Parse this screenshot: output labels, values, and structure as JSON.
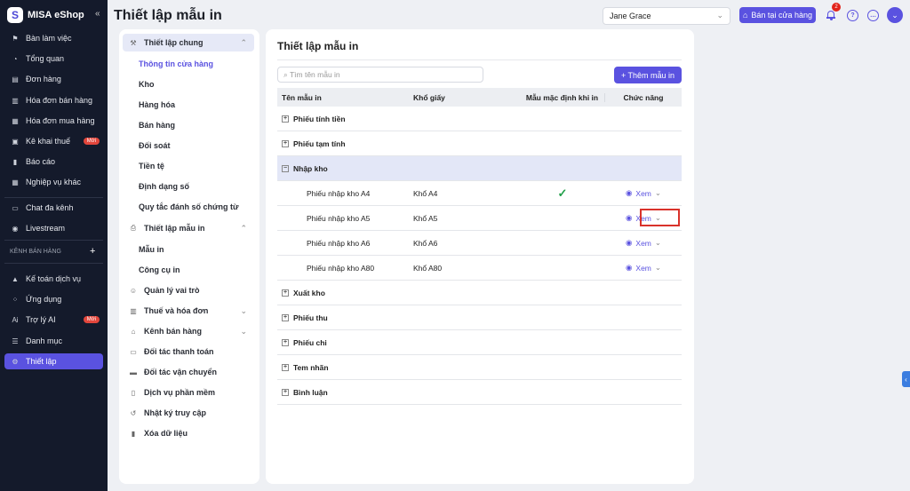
{
  "brand": "MISA eShop",
  "sidebar": {
    "items": [
      {
        "label": "Bàn làm việc",
        "icon": "desk-icon"
      },
      {
        "label": "Tổng quan",
        "icon": "dashboard-icon"
      },
      {
        "label": "Đơn hàng",
        "icon": "order-icon"
      },
      {
        "label": "Hóa đơn bán hàng",
        "icon": "invoice-icon"
      },
      {
        "label": "Hóa đơn mua hàng",
        "icon": "receipt-icon"
      },
      {
        "label": "Kê khai thuế",
        "icon": "tax-icon",
        "badge": "Mới"
      },
      {
        "label": "Báo cáo",
        "icon": "report-icon"
      },
      {
        "label": "Nghiệp vụ khác",
        "icon": "grid-icon"
      },
      {
        "label": "Chat đa kênh",
        "icon": "chat-icon"
      },
      {
        "label": "Livestream",
        "icon": "broadcast-icon"
      },
      {
        "label": "Kế toán dịch vụ",
        "icon": "accounting-icon"
      },
      {
        "label": "Ứng dụng",
        "icon": "apps-icon"
      },
      {
        "label": "Trợ lý AI",
        "icon": "ai-icon",
        "badge": "Mới"
      },
      {
        "label": "Danh mục",
        "icon": "list-icon"
      },
      {
        "label": "Thiết lập",
        "icon": "gear-icon",
        "active": true
      }
    ],
    "section_label": "KÊNH BÁN HÀNG"
  },
  "header": {
    "title": "Thiết lập mẫu in",
    "user_select": "Jane Grace",
    "sell_button": "Bán tại cửa hàng",
    "notification_count": "2"
  },
  "settings_menu": {
    "group1": "Thiết lập chung",
    "group1_items": [
      "Thông tin cửa hàng",
      "Kho",
      "Hàng hóa",
      "Bán hàng",
      "Đối soát",
      "Tiền tệ",
      "Định dạng số",
      "Quy tắc đánh số chứng từ"
    ],
    "group2": "Thiết lập mẫu in",
    "group2_items": [
      "Mẫu in",
      "Công cụ in"
    ],
    "others": [
      "Quản lý vai trò",
      "Thuế và hóa đơn",
      "Kênh bán hàng",
      "Đối tác thanh toán",
      "Đối tác vận chuyển",
      "Dịch vụ phần mềm",
      "Nhật ký truy cập",
      "Xóa dữ liệu"
    ]
  },
  "main": {
    "title": "Thiết lập mẫu in",
    "search_placeholder": "Tìm tên mẫu in",
    "add_button": "+ Thêm mẫu in",
    "columns": [
      "Tên mẫu in",
      "Khổ giấy",
      "Mẫu mặc định khi in",
      "Chức năng"
    ],
    "view_label": "Xem",
    "groups_before": [
      "Phiếu tính tiền",
      "Phiếu tạm tính"
    ],
    "expanded_group": "Nhập kho",
    "children": [
      {
        "name": "Phiếu nhập kho A4",
        "paper": "Khổ A4",
        "default": true
      },
      {
        "name": "Phiếu nhập kho A5",
        "paper": "Khổ A5",
        "default": false
      },
      {
        "name": "Phiếu nhập kho A6",
        "paper": "Khổ A6",
        "default": false
      },
      {
        "name": "Phiếu nhập kho A80",
        "paper": "Khổ A80",
        "default": false
      }
    ],
    "groups_after": [
      "Xuất kho",
      "Phiếu thu",
      "Phiếu chi",
      "Tem nhãn",
      "Bình luận"
    ]
  },
  "colors": {
    "accent": "#5a52e0",
    "sidebar": "#141a2b",
    "highlight": "#d9322b"
  }
}
